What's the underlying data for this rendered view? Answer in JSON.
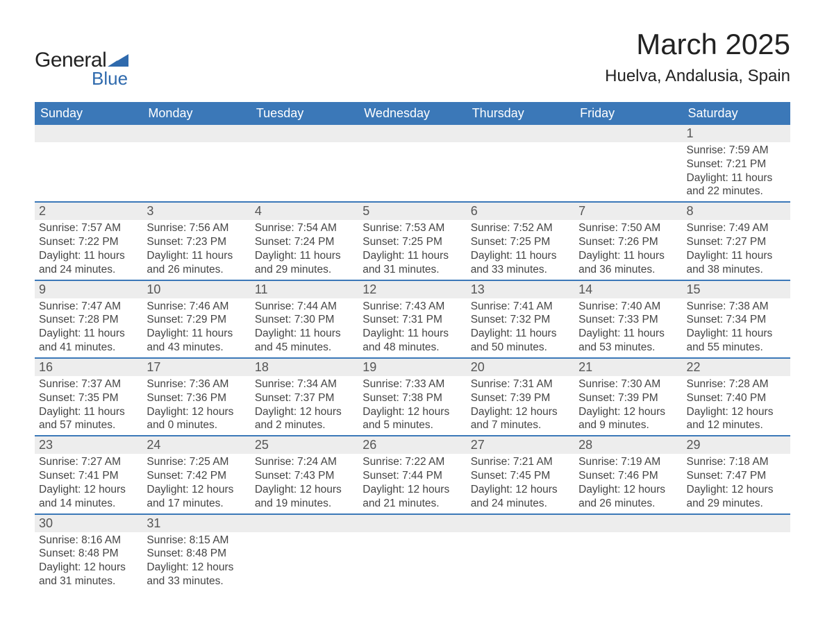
{
  "logo": {
    "text1": "General",
    "text2": "Blue",
    "tri_color": "#2f6aad"
  },
  "header": {
    "month": "March 2025",
    "location": "Huelva, Andalusia, Spain"
  },
  "colors": {
    "header_bg": "#3b78b8",
    "header_fg": "#ffffff",
    "daynum_bg": "#ededed",
    "row_border": "#3b78b8",
    "text": "#444444"
  },
  "typography": {
    "month_fontsize": 42,
    "location_fontsize": 24,
    "weekday_fontsize": 18,
    "daynum_fontsize": 18,
    "body_fontsize": 15.5
  },
  "weekdays": [
    "Sunday",
    "Monday",
    "Tuesday",
    "Wednesday",
    "Thursday",
    "Friday",
    "Saturday"
  ],
  "weeks": [
    [
      {
        "blank": true
      },
      {
        "blank": true
      },
      {
        "blank": true
      },
      {
        "blank": true
      },
      {
        "blank": true
      },
      {
        "blank": true
      },
      {
        "num": "1",
        "sunrise": "7:59 AM",
        "sunset": "7:21 PM",
        "daylight": "11 hours and 22 minutes."
      }
    ],
    [
      {
        "num": "2",
        "sunrise": "7:57 AM",
        "sunset": "7:22 PM",
        "daylight": "11 hours and 24 minutes."
      },
      {
        "num": "3",
        "sunrise": "7:56 AM",
        "sunset": "7:23 PM",
        "daylight": "11 hours and 26 minutes."
      },
      {
        "num": "4",
        "sunrise": "7:54 AM",
        "sunset": "7:24 PM",
        "daylight": "11 hours and 29 minutes."
      },
      {
        "num": "5",
        "sunrise": "7:53 AM",
        "sunset": "7:25 PM",
        "daylight": "11 hours and 31 minutes."
      },
      {
        "num": "6",
        "sunrise": "7:52 AM",
        "sunset": "7:25 PM",
        "daylight": "11 hours and 33 minutes."
      },
      {
        "num": "7",
        "sunrise": "7:50 AM",
        "sunset": "7:26 PM",
        "daylight": "11 hours and 36 minutes."
      },
      {
        "num": "8",
        "sunrise": "7:49 AM",
        "sunset": "7:27 PM",
        "daylight": "11 hours and 38 minutes."
      }
    ],
    [
      {
        "num": "9",
        "sunrise": "7:47 AM",
        "sunset": "7:28 PM",
        "daylight": "11 hours and 41 minutes."
      },
      {
        "num": "10",
        "sunrise": "7:46 AM",
        "sunset": "7:29 PM",
        "daylight": "11 hours and 43 minutes."
      },
      {
        "num": "11",
        "sunrise": "7:44 AM",
        "sunset": "7:30 PM",
        "daylight": "11 hours and 45 minutes."
      },
      {
        "num": "12",
        "sunrise": "7:43 AM",
        "sunset": "7:31 PM",
        "daylight": "11 hours and 48 minutes."
      },
      {
        "num": "13",
        "sunrise": "7:41 AM",
        "sunset": "7:32 PM",
        "daylight": "11 hours and 50 minutes."
      },
      {
        "num": "14",
        "sunrise": "7:40 AM",
        "sunset": "7:33 PM",
        "daylight": "11 hours and 53 minutes."
      },
      {
        "num": "15",
        "sunrise": "7:38 AM",
        "sunset": "7:34 PM",
        "daylight": "11 hours and 55 minutes."
      }
    ],
    [
      {
        "num": "16",
        "sunrise": "7:37 AM",
        "sunset": "7:35 PM",
        "daylight": "11 hours and 57 minutes."
      },
      {
        "num": "17",
        "sunrise": "7:36 AM",
        "sunset": "7:36 PM",
        "daylight": "12 hours and 0 minutes."
      },
      {
        "num": "18",
        "sunrise": "7:34 AM",
        "sunset": "7:37 PM",
        "daylight": "12 hours and 2 minutes."
      },
      {
        "num": "19",
        "sunrise": "7:33 AM",
        "sunset": "7:38 PM",
        "daylight": "12 hours and 5 minutes."
      },
      {
        "num": "20",
        "sunrise": "7:31 AM",
        "sunset": "7:39 PM",
        "daylight": "12 hours and 7 minutes."
      },
      {
        "num": "21",
        "sunrise": "7:30 AM",
        "sunset": "7:39 PM",
        "daylight": "12 hours and 9 minutes."
      },
      {
        "num": "22",
        "sunrise": "7:28 AM",
        "sunset": "7:40 PM",
        "daylight": "12 hours and 12 minutes."
      }
    ],
    [
      {
        "num": "23",
        "sunrise": "7:27 AM",
        "sunset": "7:41 PM",
        "daylight": "12 hours and 14 minutes."
      },
      {
        "num": "24",
        "sunrise": "7:25 AM",
        "sunset": "7:42 PM",
        "daylight": "12 hours and 17 minutes."
      },
      {
        "num": "25",
        "sunrise": "7:24 AM",
        "sunset": "7:43 PM",
        "daylight": "12 hours and 19 minutes."
      },
      {
        "num": "26",
        "sunrise": "7:22 AM",
        "sunset": "7:44 PM",
        "daylight": "12 hours and 21 minutes."
      },
      {
        "num": "27",
        "sunrise": "7:21 AM",
        "sunset": "7:45 PM",
        "daylight": "12 hours and 24 minutes."
      },
      {
        "num": "28",
        "sunrise": "7:19 AM",
        "sunset": "7:46 PM",
        "daylight": "12 hours and 26 minutes."
      },
      {
        "num": "29",
        "sunrise": "7:18 AM",
        "sunset": "7:47 PM",
        "daylight": "12 hours and 29 minutes."
      }
    ],
    [
      {
        "num": "30",
        "sunrise": "8:16 AM",
        "sunset": "8:48 PM",
        "daylight": "12 hours and 31 minutes."
      },
      {
        "num": "31",
        "sunrise": "8:15 AM",
        "sunset": "8:48 PM",
        "daylight": "12 hours and 33 minutes."
      },
      {
        "blank": true
      },
      {
        "blank": true
      },
      {
        "blank": true
      },
      {
        "blank": true
      },
      {
        "blank": true
      }
    ]
  ],
  "label": {
    "sunrise": "Sunrise: ",
    "sunset": "Sunset: ",
    "daylight": "Daylight: "
  }
}
